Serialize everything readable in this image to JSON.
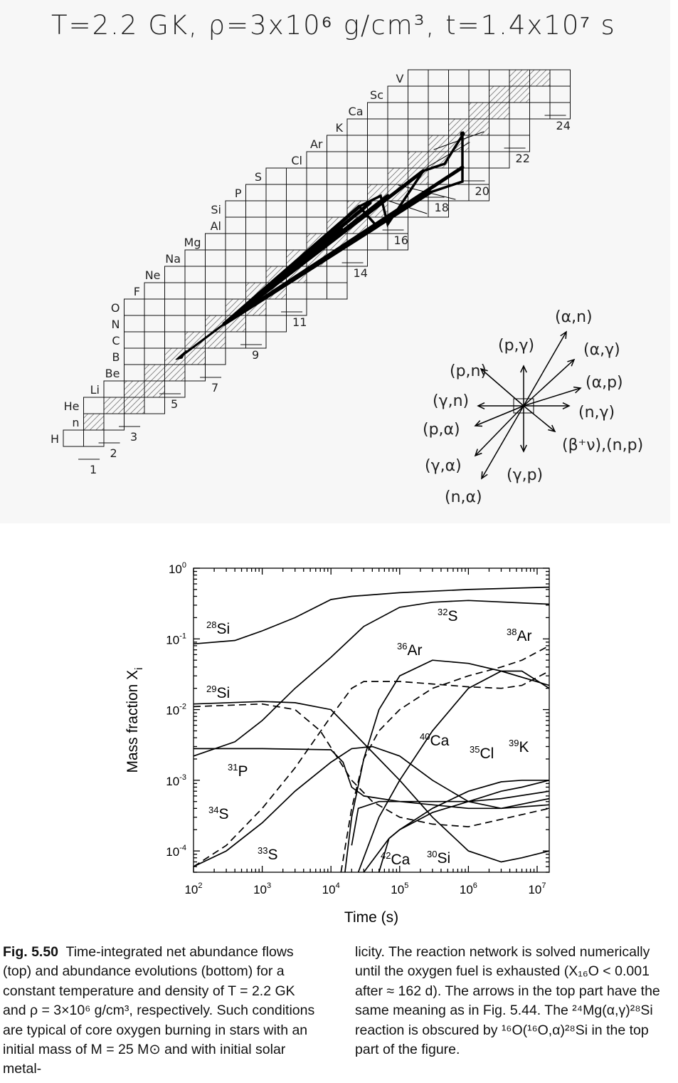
{
  "top_figure": {
    "title": "T=2.2 GK, ρ=3x10⁶ g/cm³, t=1.4x10⁷ s",
    "element_labels": [
      "H",
      "n",
      "He",
      "Li",
      "Be",
      "B",
      "C",
      "N",
      "O",
      "F",
      "Ne",
      "Na",
      "Mg",
      "Al",
      "Si",
      "P",
      "S",
      "Cl",
      "Ar",
      "K",
      "Ca",
      "Sc",
      "V"
    ],
    "neutron_numbers": [
      "1",
      "2",
      "3",
      "5",
      "7",
      "9",
      "11",
      "14",
      "16",
      "18",
      "20",
      "22",
      "24"
    ],
    "reaction_legend": [
      "(α,n)",
      "(p,γ)",
      "(α,γ)",
      "(p,n)",
      "(α,p)",
      "(γ,n)",
      "(n,γ)",
      "(p,α)",
      "(β⁺ν),(n,p)",
      "(γ,α)",
      "(γ,p)",
      "(n,α)"
    ]
  },
  "chart_data": {
    "type": "line",
    "xlabel": "Time  (s)",
    "ylabel": "Mass fraction X",
    "ylabel_sub": "i",
    "x_scale": "log",
    "y_scale": "log",
    "xlim": [
      100,
      15000000
    ],
    "ylim": [
      5e-05,
      1
    ],
    "x_ticks": [
      "10^2",
      "10^3",
      "10^4",
      "10^5",
      "10^6",
      "10^7"
    ],
    "y_ticks": [
      "10^0",
      "10^-1",
      "10^-2",
      "10^-3",
      "10^-4"
    ],
    "series": [
      {
        "name": "28Si",
        "mass": "28",
        "elem": "Si",
        "dash": false,
        "points": [
          [
            100,
            0.085
          ],
          [
            400,
            0.095
          ],
          [
            1000,
            0.13
          ],
          [
            3000,
            0.2
          ],
          [
            10000,
            0.36
          ],
          [
            20000,
            0.4
          ],
          [
            100000,
            0.45
          ],
          [
            1000000,
            0.5
          ],
          [
            15000000,
            0.54
          ]
        ]
      },
      {
        "name": "32S",
        "mass": "32",
        "elem": "S",
        "dash": false,
        "points": [
          [
            100,
            0.0022
          ],
          [
            400,
            0.0035
          ],
          [
            1000,
            0.007
          ],
          [
            3000,
            0.02
          ],
          [
            10000,
            0.055
          ],
          [
            30000,
            0.15
          ],
          [
            100000,
            0.28
          ],
          [
            300000,
            0.33
          ],
          [
            1000000,
            0.35
          ],
          [
            15000000,
            0.31
          ]
        ]
      },
      {
        "name": "29Si",
        "mass": "29",
        "elem": "Si",
        "dash": true,
        "points": [
          [
            100,
            0.011
          ],
          [
            1000,
            0.012
          ],
          [
            3000,
            0.01
          ],
          [
            7000,
            0.005
          ],
          [
            12000,
            0.0022
          ],
          [
            20000,
            0.001
          ],
          [
            40000,
            0.0005
          ],
          [
            100000,
            0.0003
          ],
          [
            300000,
            0.00024
          ],
          [
            1000000,
            0.00022
          ],
          [
            3000000,
            0.00028
          ],
          [
            15000000,
            0.0004
          ]
        ]
      },
      {
        "name": "30Si",
        "mass": "30",
        "elem": "Si",
        "dash": false,
        "points": [
          [
            100,
            0.012
          ],
          [
            1000,
            0.013
          ],
          [
            3000,
            0.0125
          ],
          [
            10000,
            0.01
          ],
          [
            20000,
            0.005
          ],
          [
            50000,
            0.002
          ],
          [
            100000,
            0.001
          ],
          [
            300000,
            0.0003
          ],
          [
            1000000,
            0.0001
          ],
          [
            3000000,
            7e-05
          ],
          [
            6000000,
            8e-05
          ],
          [
            15000000,
            0.0001
          ]
        ]
      },
      {
        "name": "31P",
        "mass": "31",
        "elem": "P",
        "dash": false,
        "points": [
          [
            100,
            0.0028
          ],
          [
            1000,
            0.0028
          ],
          [
            10000,
            0.0027
          ],
          [
            15000,
            0.0018
          ],
          [
            20000,
            0.0008
          ],
          [
            30000,
            0.0006
          ],
          [
            100000,
            0.0005
          ],
          [
            300000,
            0.00045
          ],
          [
            1000000,
            0.0004
          ],
          [
            3000000,
            0.0004
          ],
          [
            15000000,
            0.00045
          ]
        ]
      },
      {
        "name": "34S",
        "mass": "34",
        "elem": "S",
        "dash": true,
        "points": [
          [
            100,
            6e-05
          ],
          [
            300,
            0.00012
          ],
          [
            1000,
            0.0004
          ],
          [
            3000,
            0.0015
          ],
          [
            10000,
            0.008
          ],
          [
            20000,
            0.02
          ],
          [
            30000,
            0.025
          ],
          [
            100000,
            0.025
          ],
          [
            300000,
            0.023
          ],
          [
            1000000,
            0.021
          ],
          [
            3000000,
            0.02
          ],
          [
            6000000,
            0.022
          ],
          [
            15000000,
            0.035
          ]
        ]
      },
      {
        "name": "33S",
        "mass": "33",
        "elem": "S",
        "dash": false,
        "points": [
          [
            100,
            6e-05
          ],
          [
            300,
            0.0001
          ],
          [
            1000,
            0.00025
          ],
          [
            3000,
            0.0007
          ],
          [
            10000,
            0.0018
          ],
          [
            20000,
            0.0028
          ],
          [
            40000,
            0.003
          ],
          [
            100000,
            0.0022
          ],
          [
            300000,
            0.001
          ],
          [
            1000000,
            0.0005
          ],
          [
            3000000,
            0.0004
          ],
          [
            15000000,
            0.00055
          ]
        ]
      },
      {
        "name": "36Ar",
        "mass": "36",
        "elem": "Ar",
        "dash": false,
        "points": [
          [
            16000,
            5e-05
          ],
          [
            20000,
            0.0003
          ],
          [
            30000,
            0.002
          ],
          [
            50000,
            0.01
          ],
          [
            100000,
            0.03
          ],
          [
            300000,
            0.05
          ],
          [
            1000000,
            0.045
          ],
          [
            3000000,
            0.035
          ],
          [
            15000000,
            0.022
          ]
        ]
      },
      {
        "name": "38Ar",
        "mass": "38",
        "elem": "Ar",
        "dash": true,
        "points": [
          [
            14000,
            5e-05
          ],
          [
            20000,
            0.0004
          ],
          [
            30000,
            0.002
          ],
          [
            50000,
            0.005
          ],
          [
            100000,
            0.01
          ],
          [
            300000,
            0.02
          ],
          [
            1000000,
            0.03
          ],
          [
            3000000,
            0.04
          ],
          [
            6000000,
            0.05
          ],
          [
            15000000,
            0.08
          ]
        ]
      },
      {
        "name": "40Ca",
        "mass": "40",
        "elem": "Ca",
        "dash": false,
        "points": [
          [
            25000,
            5e-05
          ],
          [
            50000,
            0.0003
          ],
          [
            100000,
            0.001
          ],
          [
            300000,
            0.005
          ],
          [
            1000000,
            0.02
          ],
          [
            3000000,
            0.035
          ],
          [
            6000000,
            0.035
          ],
          [
            15000000,
            0.02
          ]
        ]
      },
      {
        "name": "35Cl",
        "mass": "35",
        "elem": "Cl",
        "dash": false,
        "points": [
          [
            20000,
            0.00012
          ],
          [
            25000,
            0.0004
          ],
          [
            50000,
            0.0005
          ],
          [
            100000,
            0.0005
          ],
          [
            300000,
            0.0005
          ],
          [
            1000000,
            0.0005
          ],
          [
            3000000,
            0.00055
          ],
          [
            15000000,
            0.0007
          ]
        ]
      },
      {
        "name": "39K",
        "mass": "39",
        "elem": "K",
        "dash": false,
        "points": [
          [
            50000,
            5e-05
          ],
          [
            70000,
            0.00015
          ],
          [
            100000,
            0.0002
          ],
          [
            300000,
            0.0004
          ],
          [
            1000000,
            0.0007
          ],
          [
            3000000,
            0.00095
          ],
          [
            6000000,
            0.001
          ],
          [
            15000000,
            0.001
          ]
        ]
      },
      {
        "name": "42Ca",
        "mass": "42",
        "elem": "Ca",
        "dash": false,
        "points": [
          [
            30000,
            5e-05
          ],
          [
            70000,
            0.00015
          ],
          [
            100000,
            0.0002
          ],
          [
            300000,
            0.00035
          ],
          [
            1000000,
            0.0005
          ],
          [
            3000000,
            0.0007
          ],
          [
            6000000,
            0.0008
          ],
          [
            15000000,
            0.001
          ]
        ]
      }
    ]
  },
  "caption": {
    "left_label": "Fig. 5.50",
    "left_text": "Time-integrated net abundance flows (top) and abundance evolutions (bottom) for a constant temperature and density of T = 2.2 GK and ρ = 3×10⁶ g/cm³, respectively. Such conditions are typical of core oxygen burning in stars with an initial mass of M = 25 M⊙ and with initial solar metal-",
    "right_text": "licity. The reaction network is solved numerically until the oxygen fuel is exhausted (X₁₆O < 0.001 after ≈ 162 d). The arrows in the top part have the same meaning as in Fig. 5.44. The ²⁴Mg(α,γ)²⁸Si reaction is obscured by ¹⁶O(¹⁶O,α)²⁸Si in the top part of the figure."
  }
}
